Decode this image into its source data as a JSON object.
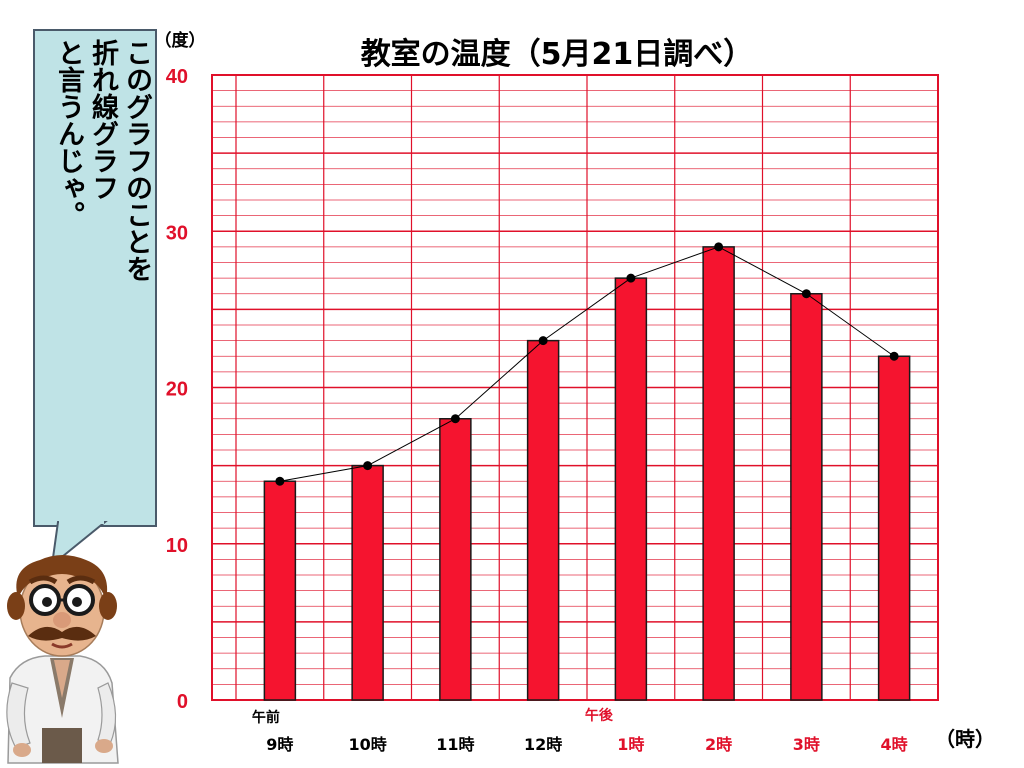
{
  "chart_data": {
    "type": "bar",
    "title": "教室の温度（5月21日調べ）",
    "ylabel": "（度）",
    "xlabel": "（時）",
    "ylim": [
      0,
      40
    ],
    "yticks": [
      "0",
      "10",
      "20",
      "30",
      "40"
    ],
    "categories": [
      "9時",
      "10時",
      "11時",
      "12時",
      "1時",
      "2時",
      "3時",
      "4時"
    ],
    "values": [
      14,
      15,
      18,
      23,
      27,
      29,
      26,
      22
    ],
    "group_labels": {
      "am": "午前",
      "pm": "午後"
    },
    "overlay_line": true,
    "grid": true,
    "colors": {
      "bar": "#f5142f",
      "grid": "#e0102a",
      "line": "#000000",
      "pm_label": "#e0102a",
      "am_label": "#000000"
    }
  },
  "bubble": {
    "text": "このグラフのことを\n折れ線グラフ\nと言うんじゃ。"
  },
  "character": {
    "icon": "scientist-icon"
  }
}
